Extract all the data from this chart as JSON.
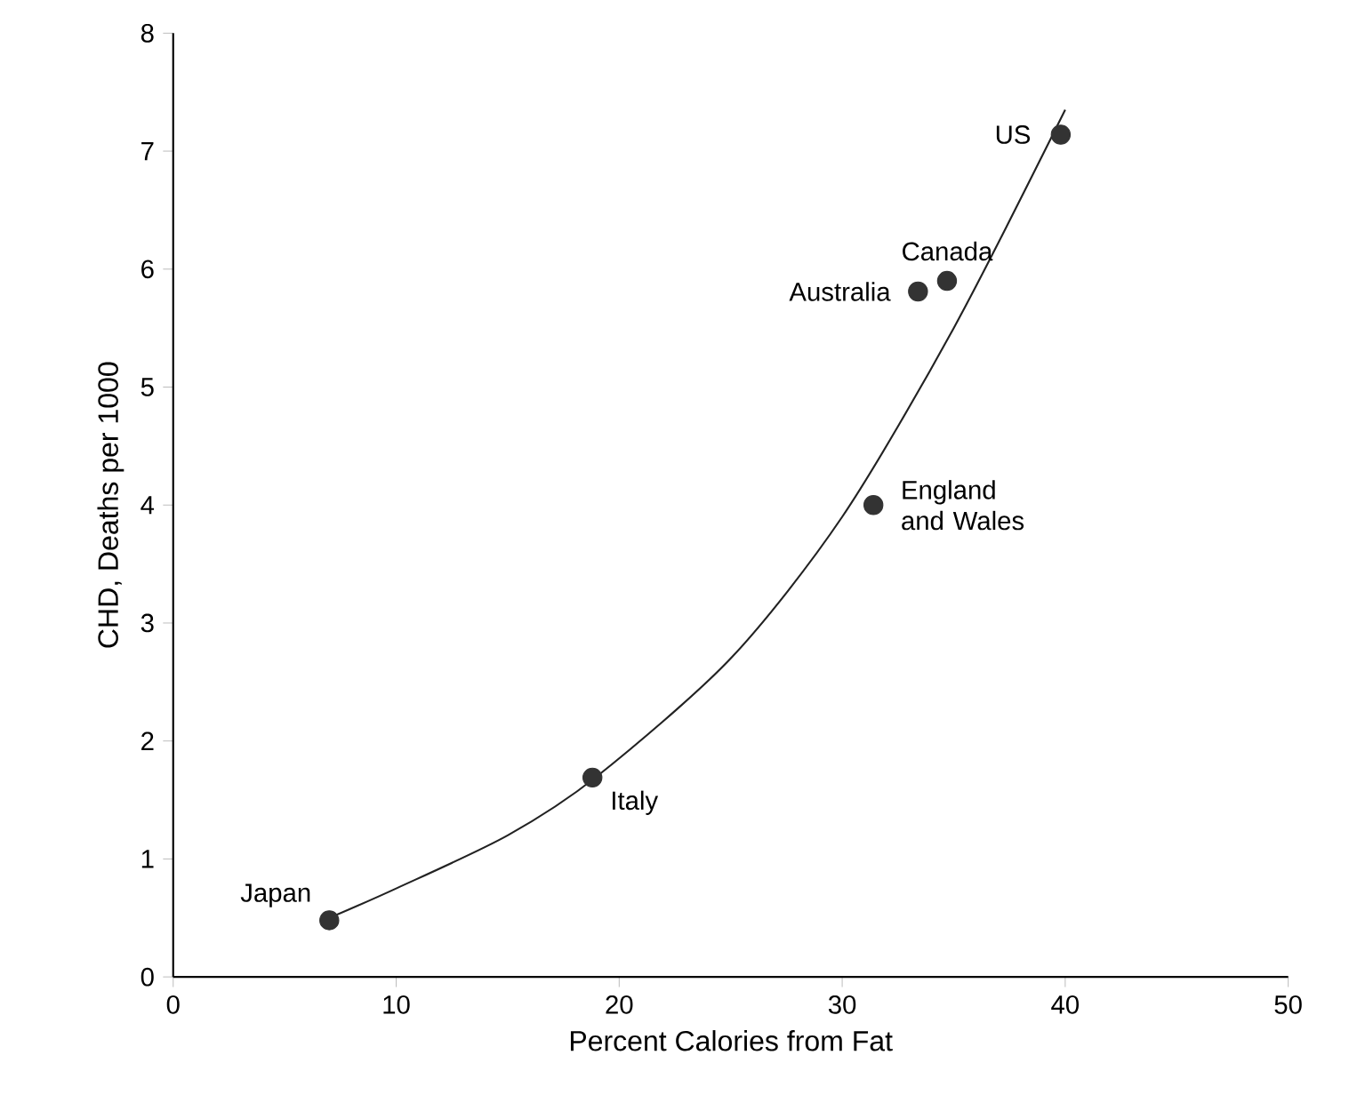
{
  "chart_data": {
    "type": "scatter",
    "xlabel": "Percent Calories from Fat",
    "ylabel": "CHD, Deaths per 1000",
    "xlim": [
      0,
      50
    ],
    "ylim": [
      0,
      8
    ],
    "xticks": [
      0,
      10,
      20,
      30,
      40,
      50
    ],
    "yticks": [
      0,
      1,
      2,
      3,
      4,
      5,
      6,
      7,
      8
    ],
    "grid": false,
    "series": [
      {
        "marker": "circle",
        "color": "#333333",
        "x": [
          7.0,
          18.8,
          31.4,
          33.4,
          34.7,
          39.8
        ],
        "values": [
          0.48,
          1.69,
          4.0,
          5.81,
          5.9,
          7.14
        ]
      },
      {
        "type": "line",
        "marker": "none",
        "color": "#222222",
        "x": [
          7,
          10,
          15,
          19,
          25,
          30,
          35,
          40
        ],
        "values": [
          0.5,
          0.75,
          1.2,
          1.7,
          2.7,
          3.9,
          5.5,
          7.35
        ]
      }
    ],
    "annotations": [
      {
        "text": "Japan",
        "x": 7.0,
        "y": 0.48
      },
      {
        "text": "Italy",
        "x": 18.8,
        "y": 1.69
      },
      {
        "text": "England and Wales",
        "x": 31.4,
        "y": 4.0
      },
      {
        "text": "Australia",
        "x": 33.4,
        "y": 5.81
      },
      {
        "text": "Canada",
        "x": 34.7,
        "y": 5.9
      },
      {
        "text": "US",
        "x": 39.8,
        "y": 7.14
      }
    ]
  }
}
